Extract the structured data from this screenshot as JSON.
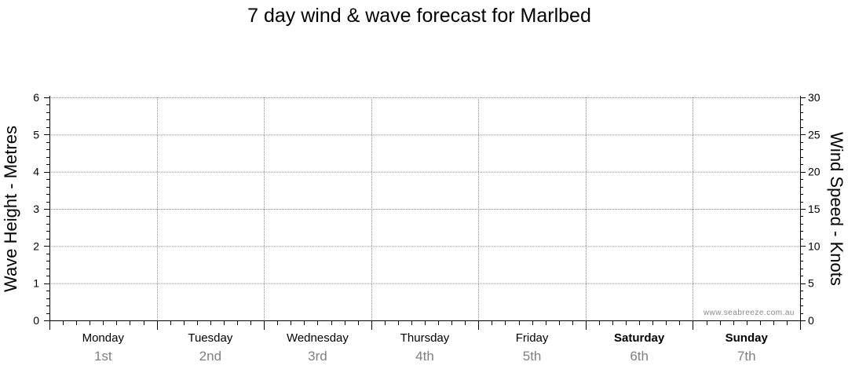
{
  "chart_data": {
    "type": "line",
    "title": "7 day wind & wave forecast for Marlbed",
    "ylabel_left": "Wave Height - Metres",
    "ylabel_right": "Wind Speed - Knots",
    "ylim_left": [
      0,
      6
    ],
    "ylim_right": [
      0,
      30
    ],
    "yticks_left": [
      "0",
      "1",
      "2",
      "3",
      "4",
      "5",
      "6"
    ],
    "yticks_right": [
      "0",
      "5",
      "10",
      "15",
      "20",
      "25",
      "30"
    ],
    "days": [
      {
        "name": "Monday",
        "date": "1st",
        "weekend": false
      },
      {
        "name": "Tuesday",
        "date": "2nd",
        "weekend": false
      },
      {
        "name": "Wednesday",
        "date": "3rd",
        "weekend": false
      },
      {
        "name": "Thursday",
        "date": "4th",
        "weekend": false
      },
      {
        "name": "Friday",
        "date": "5th",
        "weekend": false
      },
      {
        "name": "Saturday",
        "date": "6th",
        "weekend": true
      },
      {
        "name": "Sunday",
        "date": "7th",
        "weekend": true
      }
    ],
    "series": [],
    "grid": true,
    "watermark": "www.seabreeze.com.au"
  },
  "colors": {
    "grid": "#8c8c8c",
    "axis": "#000000",
    "date": "#7f7f7f"
  }
}
